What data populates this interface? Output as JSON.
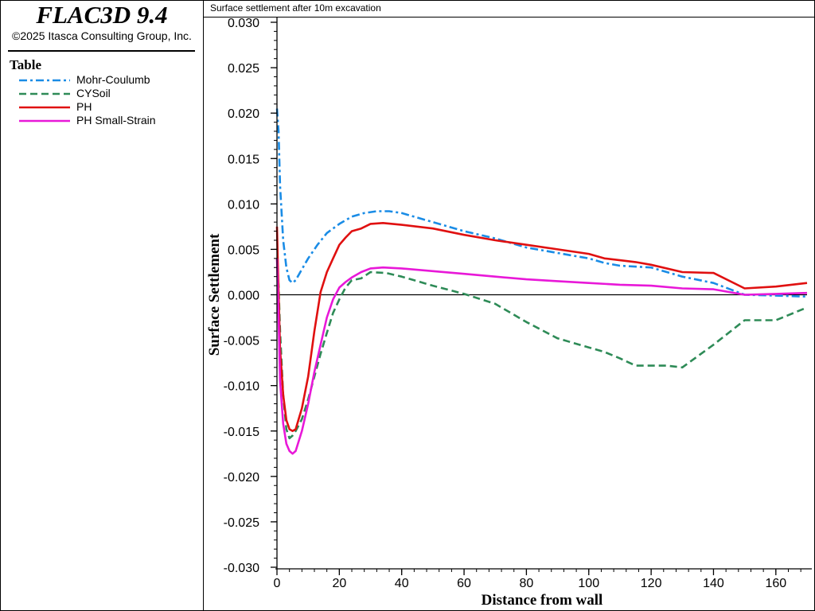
{
  "app": {
    "title": "FLAC3D 9.4",
    "copyright": "©2025 Itasca Consulting Group, Inc."
  },
  "legend": {
    "heading": "Table"
  },
  "chart_data": {
    "type": "line",
    "title": "Surface settlement after 10m excavation",
    "xlabel": "Distance from wall",
    "ylabel": "Surface Settlement",
    "xlim": [
      0,
      170
    ],
    "ylim": [
      -0.03,
      0.03
    ],
    "xticks": [
      0,
      20,
      40,
      60,
      80,
      100,
      120,
      140,
      160
    ],
    "xtick_labels": [
      "0",
      "20",
      "40",
      "60",
      "80",
      "100",
      "120",
      "140",
      "160"
    ],
    "yticks": [
      0.03,
      0.025,
      0.02,
      0.015,
      0.01,
      0.005,
      0.0,
      -0.005,
      -0.01,
      -0.015,
      -0.02,
      -0.025,
      -0.03
    ],
    "ytick_labels": [
      "0.030",
      "0.025",
      "0.020",
      "0.015",
      "0.010",
      "0.005",
      "0.000",
      "-0.005",
      "-0.010",
      "-0.015",
      "-0.020",
      "-0.025",
      "-0.030"
    ],
    "zero_line": true,
    "legend_position": "left-panel",
    "series": [
      {
        "name": "Mohr-Coulumb",
        "color": "#1a8ce6",
        "dash": "10 4 3 4",
        "x": [
          0,
          0.5,
          1,
          2,
          3,
          4,
          5,
          6,
          8,
          10,
          13,
          16,
          20,
          24,
          28,
          32,
          36,
          40,
          50,
          60,
          70,
          80,
          90,
          100,
          105,
          110,
          120,
          130,
          140,
          150,
          160,
          170
        ],
        "y": [
          0.0205,
          0.018,
          0.012,
          0.006,
          0.003,
          0.0016,
          0.0013,
          0.0016,
          0.0028,
          0.004,
          0.0055,
          0.0068,
          0.0078,
          0.0086,
          0.009,
          0.0092,
          0.0092,
          0.009,
          0.008,
          0.007,
          0.0062,
          0.0052,
          0.0046,
          0.004,
          0.0035,
          0.0032,
          0.003,
          0.002,
          0.0013,
          0.0,
          -0.0001,
          -0.0002
        ]
      },
      {
        "name": "CYSoil",
        "color": "#2e8b57",
        "dash": "9 5",
        "x": [
          0,
          0.5,
          1,
          2,
          3,
          4,
          5,
          6,
          8,
          10,
          12,
          14,
          16,
          18,
          20,
          22,
          24,
          27,
          30,
          35,
          40,
          50,
          60,
          70,
          80,
          90,
          100,
          105,
          110,
          115,
          120,
          125,
          130,
          140,
          150,
          155,
          160,
          170
        ],
        "y": [
          0.004,
          0.001,
          -0.004,
          -0.011,
          -0.0148,
          -0.0158,
          -0.0155,
          -0.015,
          -0.0137,
          -0.0115,
          -0.009,
          -0.0065,
          -0.0042,
          -0.002,
          -0.0005,
          0.0008,
          0.0016,
          0.0018,
          0.0025,
          0.0024,
          0.002,
          0.001,
          0.0001,
          -0.001,
          -0.003,
          -0.0048,
          -0.0058,
          -0.0063,
          -0.007,
          -0.0078,
          -0.0078,
          -0.0078,
          -0.008,
          -0.0055,
          -0.0028,
          -0.0028,
          -0.0028,
          -0.0014
        ]
      },
      {
        "name": "PH",
        "color": "#e01010",
        "dash": "",
        "x": [
          0,
          0.3,
          0.7,
          1,
          2,
          3,
          4,
          5,
          6,
          8,
          10,
          12,
          14,
          16,
          18,
          20,
          22,
          24,
          27,
          30,
          34,
          40,
          50,
          60,
          70,
          80,
          90,
          100,
          105,
          110,
          115,
          120,
          130,
          140,
          150,
          160,
          170
        ],
        "y": [
          0.0075,
          0.003,
          -0.002,
          -0.006,
          -0.011,
          -0.0138,
          -0.0148,
          -0.015,
          -0.0148,
          -0.0125,
          -0.009,
          -0.004,
          0.0003,
          0.0025,
          0.004,
          0.0055,
          0.0063,
          0.007,
          0.0073,
          0.0078,
          0.0079,
          0.0077,
          0.0073,
          0.0066,
          0.006,
          0.0055,
          0.005,
          0.0045,
          0.004,
          0.0038,
          0.0036,
          0.0033,
          0.0025,
          0.0024,
          0.0007,
          0.0009,
          0.0013
        ]
      },
      {
        "name": "PH Small-Strain",
        "color": "#e818d8",
        "dash": "",
        "x": [
          0,
          0.3,
          0.7,
          1,
          2,
          3,
          4,
          5,
          6,
          8,
          10,
          12,
          14,
          16,
          18,
          20,
          22,
          24,
          27,
          30,
          34,
          40,
          50,
          60,
          70,
          80,
          90,
          100,
          110,
          120,
          130,
          140,
          150,
          160,
          170
        ],
        "y": [
          0.004,
          0.0,
          -0.005,
          -0.0095,
          -0.0142,
          -0.0164,
          -0.0172,
          -0.0175,
          -0.0172,
          -0.015,
          -0.012,
          -0.0085,
          -0.0055,
          -0.0025,
          -0.0005,
          0.0008,
          0.0014,
          0.0019,
          0.0025,
          0.0029,
          0.003,
          0.0029,
          0.0026,
          0.0023,
          0.002,
          0.0017,
          0.0015,
          0.0013,
          0.0011,
          0.001,
          0.0007,
          0.0006,
          0.0,
          0.0001,
          0.0002
        ]
      }
    ]
  }
}
